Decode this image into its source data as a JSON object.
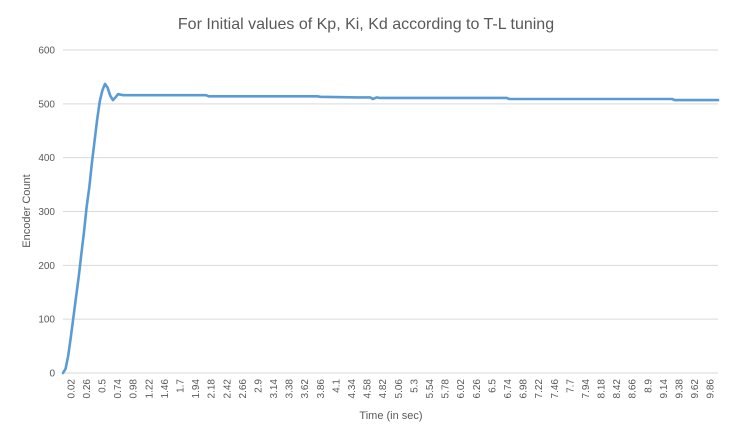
{
  "chart_data": {
    "type": "line",
    "title": "For Initial values of Kp, Ki, Kd according to T-L tuning",
    "xlabel": "Time (in sec)",
    "ylabel": "Encoder Count",
    "ylim": [
      0,
      600
    ],
    "yticks": [
      0,
      100,
      200,
      300,
      400,
      500,
      600
    ],
    "xlim": [
      0.02,
      10.0
    ],
    "xtick_labels": [
      "0.02",
      "0.26",
      "0.5",
      "0.74",
      "0.98",
      "1.22",
      "1.46",
      "1.7",
      "1.94",
      "2.18",
      "2.42",
      "2.66",
      "2.9",
      "3.14",
      "3.38",
      "3.62",
      "3.86",
      "4.1",
      "4.34",
      "4.58",
      "4.82",
      "5.06",
      "5.3",
      "5.54",
      "5.78",
      "6.02",
      "6.26",
      "6.5",
      "6.74",
      "6.98",
      "7.22",
      "7.46",
      "7.7",
      "7.94",
      "8.18",
      "8.42",
      "8.66",
      "8.9",
      "9.14",
      "9.38",
      "9.62",
      "9.86"
    ],
    "grid": true,
    "legend": "none",
    "series_color": "#5b9bd5",
    "series": [
      {
        "x": [
          0.02,
          0.06,
          0.1,
          0.14,
          0.18,
          0.22,
          0.26,
          0.3,
          0.34,
          0.38,
          0.42,
          0.46,
          0.5,
          0.54,
          0.58,
          0.62,
          0.66,
          0.7,
          0.74,
          0.78,
          0.82,
          0.86,
          0.9,
          0.94,
          0.98,
          1.02,
          1.1,
          1.2,
          1.4,
          1.6,
          2.0,
          2.2,
          2.24,
          2.5,
          3.0,
          3.5,
          3.9,
          3.94,
          4.5,
          4.7,
          4.74,
          4.8,
          4.84,
          5.0,
          6.0,
          6.78,
          6.82,
          7.5,
          8.5,
          9.3,
          9.34,
          9.6,
          10.0
        ],
        "y": [
          0,
          8,
          33,
          68,
          105,
          142,
          180,
          222,
          262,
          308,
          345,
          390,
          430,
          470,
          505,
          525,
          537,
          530,
          515,
          507,
          512,
          518,
          517,
          516,
          516,
          516,
          516,
          516,
          516,
          516,
          516,
          516,
          514,
          514,
          514,
          514,
          514,
          513,
          512,
          512,
          509,
          512,
          511,
          511,
          511,
          511,
          509,
          509,
          509,
          509,
          507,
          507,
          507
        ]
      }
    ]
  }
}
